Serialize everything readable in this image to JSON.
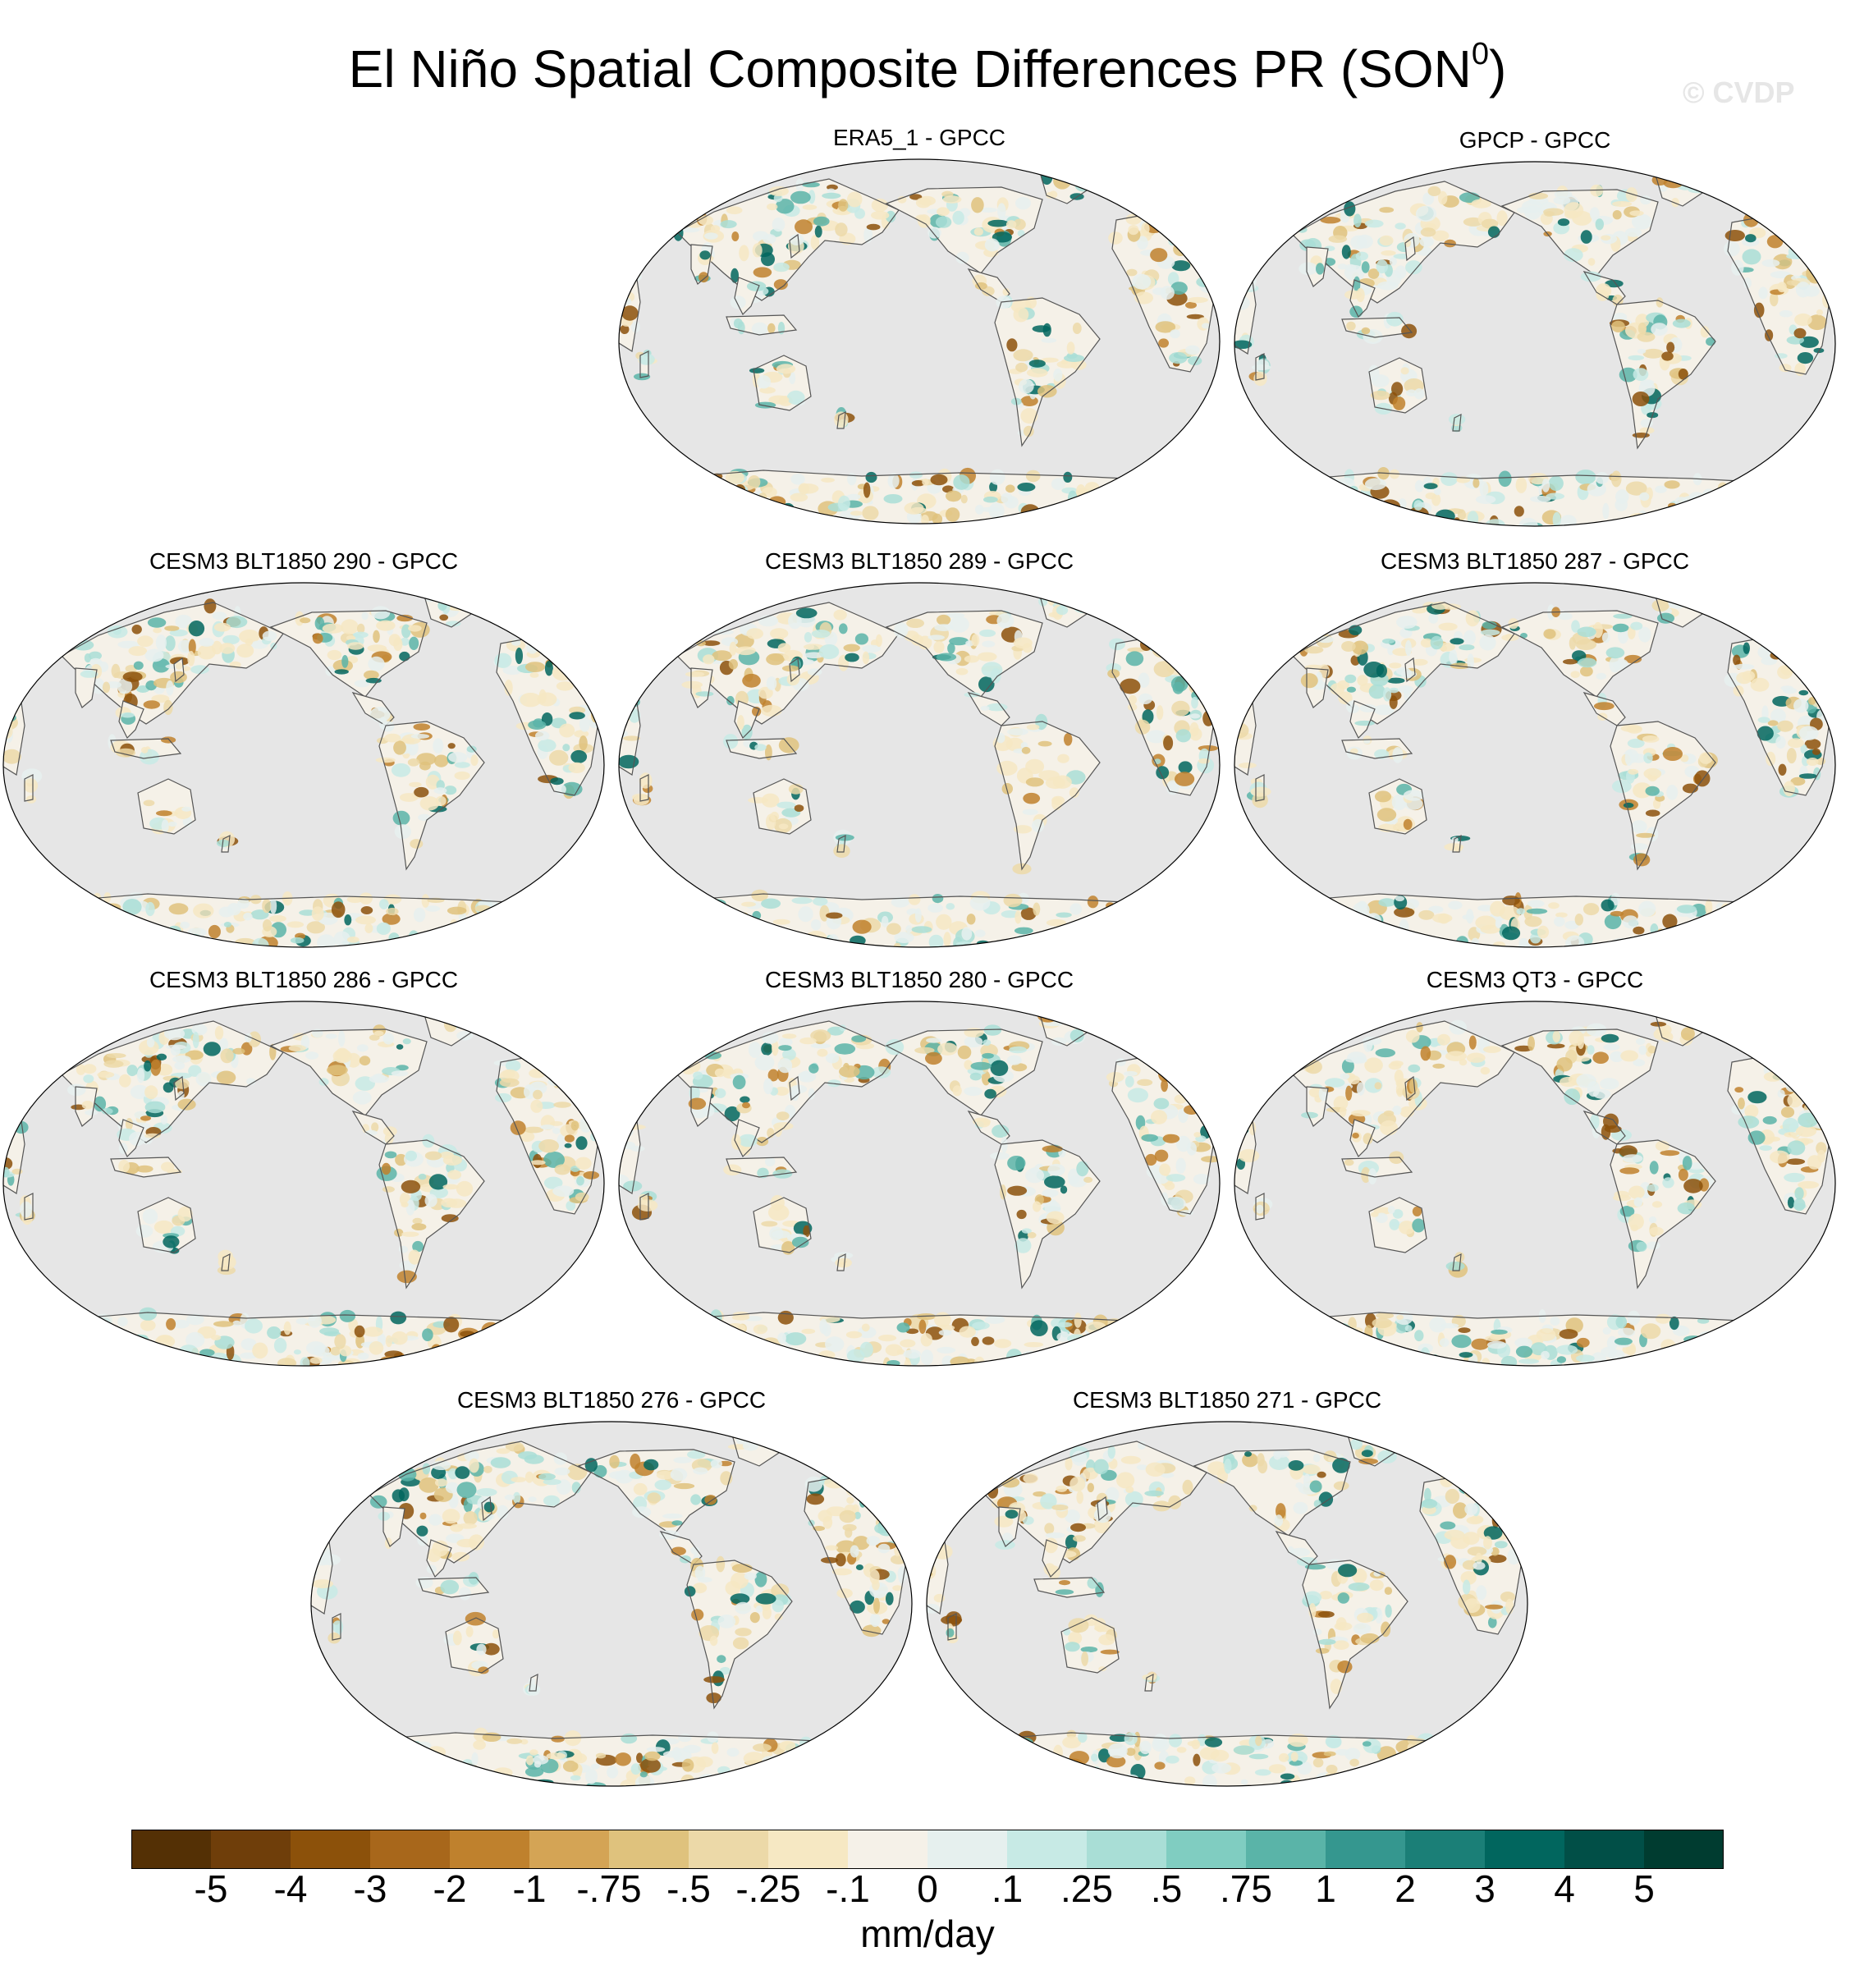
{
  "figure": {
    "title_main": "El Niño Spatial Composite Differences PR (SON",
    "title_sup": "0",
    "title_close": ")",
    "watermark": "© CVDP",
    "units": "mm/day"
  },
  "panels": [
    {
      "title": "ERA5_1 - GPCC"
    },
    {
      "title": "GPCP - GPCC"
    },
    {
      "title": "CESM3 BLT1850 290 - GPCC"
    },
    {
      "title": "CESM3 BLT1850 289 - GPCC"
    },
    {
      "title": "CESM3 BLT1850 287 - GPCC"
    },
    {
      "title": "CESM3 BLT1850 286 - GPCC"
    },
    {
      "title": "CESM3 BLT1850 280 - GPCC"
    },
    {
      "title": "CESM3 QT3 - GPCC"
    },
    {
      "title": "CESM3 BLT1850 276 - GPCC"
    },
    {
      "title": "CESM3 BLT1850 271 - GPCC"
    }
  ],
  "colorbar": {
    "labels": [
      "-5",
      "-4",
      "-3",
      "-2",
      "-1",
      "-.75",
      "-.5",
      "-.25",
      "-.1",
      "0",
      ".1",
      ".25",
      ".5",
      ".75",
      "1",
      "2",
      "3",
      "4",
      "5"
    ],
    "colors": [
      "#543005",
      "#6f3e0a",
      "#8c510a",
      "#a8671b",
      "#bf812d",
      "#d4a455",
      "#dfc27d",
      "#ecd9a8",
      "#f6e8c3",
      "#f5f1e8",
      "#e6f0ee",
      "#c7eae5",
      "#a9ded6",
      "#80cdc1",
      "#5ab4a8",
      "#35978f",
      "#1b7f77",
      "#01665e",
      "#014f47",
      "#003c30"
    ]
  },
  "map_style": {
    "ocean_color": "#e6e6e6",
    "coast_color": "#555555",
    "dry_palette": [
      "#f6e8c3",
      "#ecd9a8",
      "#dfc27d",
      "#bf812d",
      "#8c510a"
    ],
    "wet_palette": [
      "#e6f0ee",
      "#c7eae5",
      "#a9ded6",
      "#5ab4a8",
      "#01665e"
    ],
    "neutral_land": "#f5f1e8"
  }
}
